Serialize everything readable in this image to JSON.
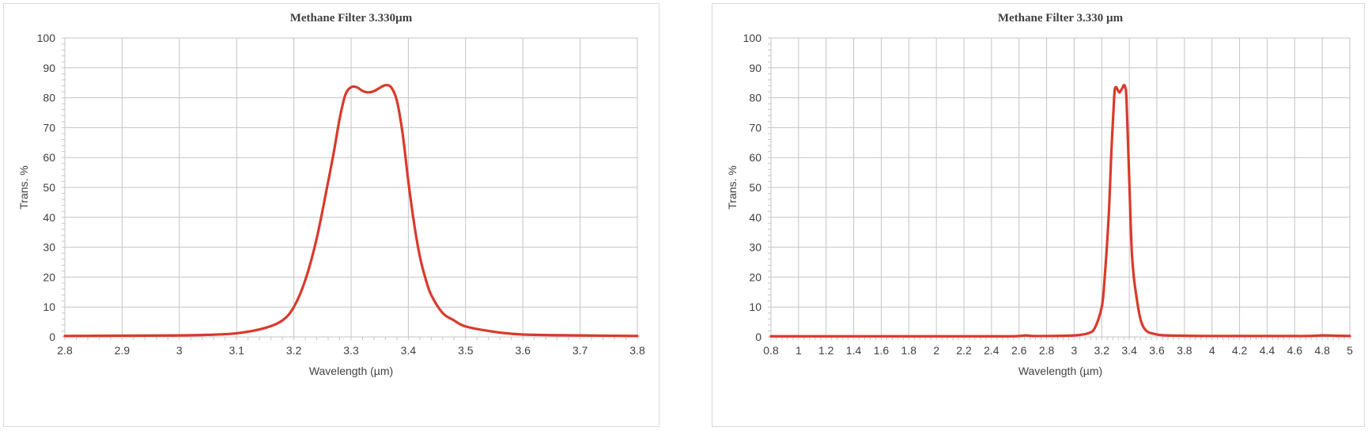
{
  "chart_data": [
    {
      "type": "line",
      "title": "Methane Filter 3.330µm",
      "xlabel": "Wavelength (µm)",
      "ylabel": "Trans. %",
      "xlim": [
        2.8,
        3.8
      ],
      "ylim": [
        0,
        100
      ],
      "xticks": [
        "2.8",
        "2.9",
        "3",
        "3.1",
        "3.2",
        "3.3",
        "3.4",
        "3.5",
        "3.6",
        "3.7",
        "3.8"
      ],
      "yticks": [
        "0",
        "10",
        "20",
        "30",
        "40",
        "50",
        "60",
        "70",
        "80",
        "90",
        "100"
      ],
      "grid": true,
      "legend": "none",
      "color": "#d93a2b",
      "series": [
        {
          "x": [
            2.8,
            2.9,
            3.0,
            3.05,
            3.1,
            3.15,
            3.18,
            3.2,
            3.22,
            3.24,
            3.26,
            3.27,
            3.28,
            3.29,
            3.3,
            3.31,
            3.32,
            3.33,
            3.34,
            3.35,
            3.36,
            3.37,
            3.38,
            3.39,
            3.4,
            3.41,
            3.42,
            3.43,
            3.44,
            3.46,
            3.48,
            3.5,
            3.55,
            3.6,
            3.7,
            3.8
          ],
          "y": [
            0.3,
            0.4,
            0.5,
            0.7,
            1.2,
            3.0,
            5.5,
            10.0,
            19.0,
            33.0,
            52.0,
            62.0,
            73.0,
            81.0,
            83.5,
            83.5,
            82.3,
            81.8,
            82.2,
            83.3,
            84.2,
            83.5,
            79.0,
            68.0,
            52.0,
            38.0,
            27.0,
            19.5,
            14.0,
            8.0,
            5.5,
            3.5,
            1.7,
            0.8,
            0.5,
            0.3
          ]
        }
      ]
    },
    {
      "type": "line",
      "title": "Methane Filter 3.330 µm",
      "xlabel": "Wavelength (µm)",
      "ylabel": "Trans. %",
      "xlim": [
        0.8,
        5
      ],
      "ylim": [
        0,
        100
      ],
      "xticks": [
        "0.8",
        "1",
        "1.2",
        "1.4",
        "1.6",
        "1.8",
        "2",
        "2.2",
        "2.4",
        "2.6",
        "2.8",
        "3",
        "3.2",
        "3.4",
        "3.6",
        "3.8",
        "4",
        "4.2",
        "4.4",
        "4.6",
        "4.8",
        "5"
      ],
      "yticks": [
        "0",
        "10",
        "20",
        "30",
        "40",
        "50",
        "60",
        "70",
        "80",
        "90",
        "100"
      ],
      "grid": true,
      "legend": "none",
      "color": "#d93a2b",
      "series": [
        {
          "x": [
            0.8,
            1.0,
            1.5,
            2.0,
            2.5,
            2.6,
            2.65,
            2.7,
            2.8,
            3.0,
            3.1,
            3.15,
            3.2,
            3.22,
            3.25,
            3.27,
            3.29,
            3.3,
            3.32,
            3.33,
            3.35,
            3.36,
            3.37,
            3.38,
            3.4,
            3.42,
            3.45,
            3.5,
            3.6,
            3.8,
            4.0,
            4.5,
            4.7,
            4.8,
            4.9,
            5.0
          ],
          "y": [
            0.2,
            0.2,
            0.2,
            0.2,
            0.2,
            0.3,
            0.5,
            0.3,
            0.3,
            0.5,
            1.2,
            3.0,
            10.0,
            19.0,
            40.0,
            62.0,
            80.0,
            83.5,
            82.3,
            81.8,
            83.3,
            84.2,
            83.5,
            79.0,
            52.0,
            27.0,
            14.0,
            3.5,
            0.8,
            0.4,
            0.3,
            0.3,
            0.3,
            0.5,
            0.4,
            0.3
          ]
        }
      ]
    }
  ]
}
